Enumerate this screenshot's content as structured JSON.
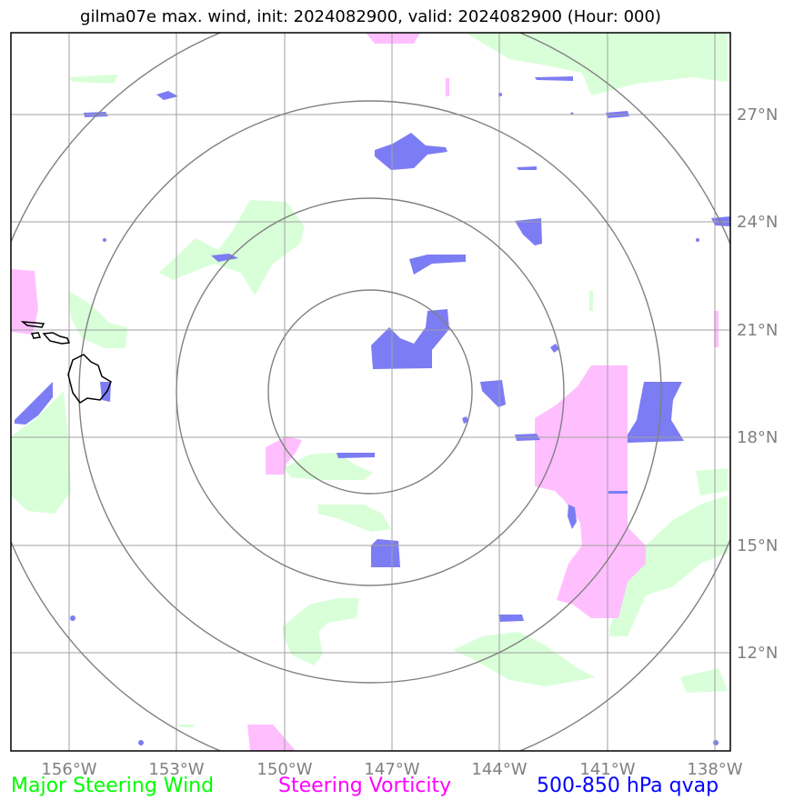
{
  "title": "gilma07e max. wind, init: 2024082900, valid: 2024082900 (Hour: 000)",
  "x_ticks": [
    "156°W",
    "153°W",
    "150°W",
    "147°W",
    "144°W",
    "141°W",
    "138°W"
  ],
  "y_ticks": [
    "27°N",
    "24°N",
    "21°N",
    "18°N",
    "15°N",
    "12°N"
  ],
  "legend": [
    {
      "label": "Major Steering Wind",
      "color": "#00ff00"
    },
    {
      "label": "Steering Vorticity",
      "color": "#ff00ff"
    },
    {
      "label": "500-850 hPa qvap",
      "color": "#0000ff"
    }
  ],
  "colors": {
    "wind_fill": "#d8ffd8",
    "vorticity_fill": "#ffbfff",
    "qvap_fill": "#7c7cf4",
    "grid": "#a0a0a0",
    "range_rings": "#808080"
  }
}
